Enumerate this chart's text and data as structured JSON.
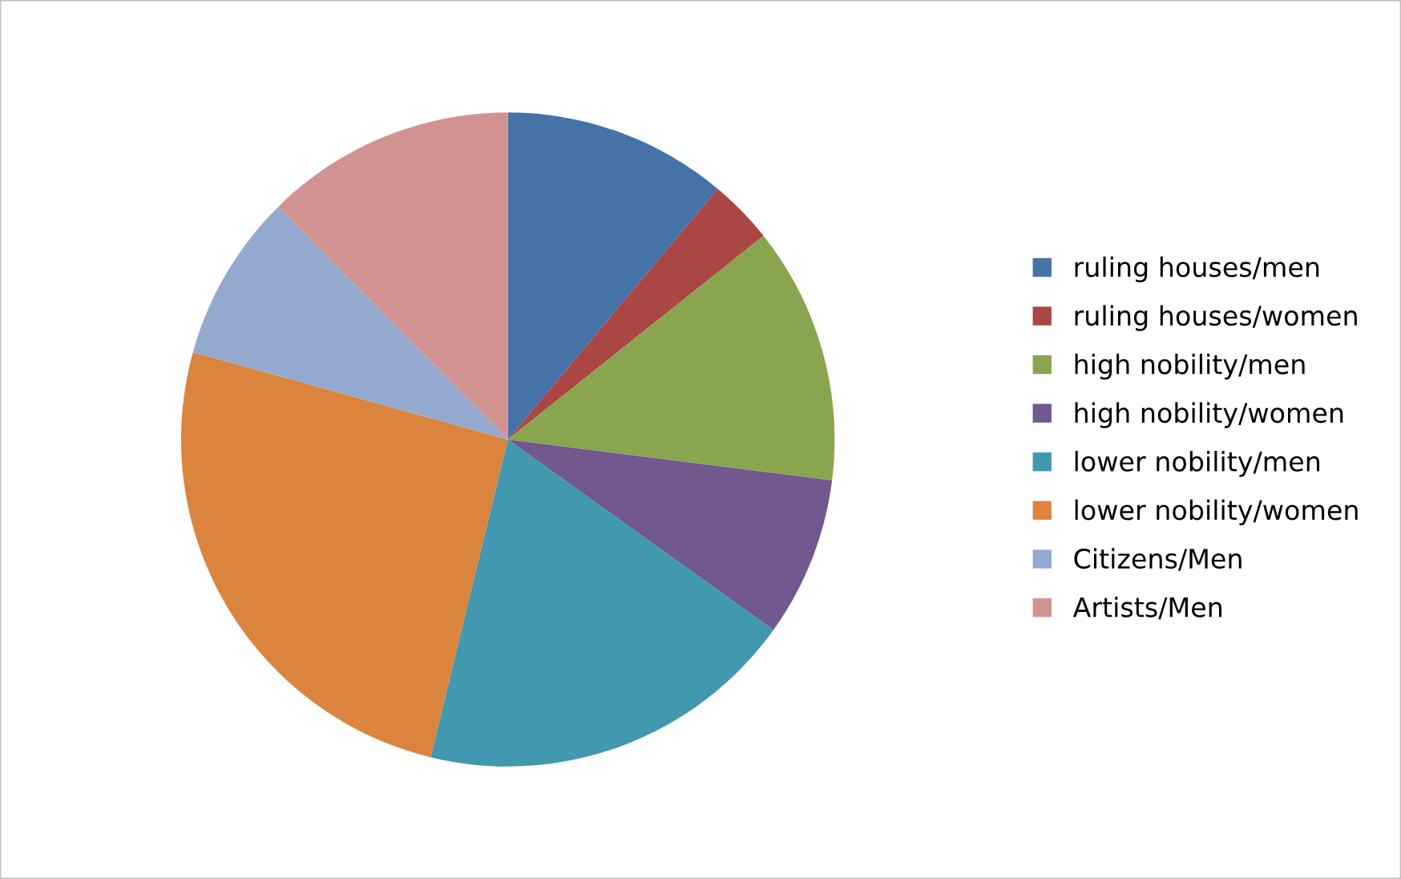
{
  "chart_data": {
    "type": "pie",
    "categories": [
      "ruling houses/men",
      "ruling houses/women",
      "high nobility/men",
      "high nobility/women",
      "lower nobility/men",
      "lower nobility/women",
      "Citizens/Men",
      "Artists/Men"
    ],
    "values": [
      11.1,
      3.2,
      12.7,
      7.9,
      18.9,
      25.5,
      8.3,
      12.4
    ],
    "colors": [
      "#4572a7",
      "#aa4643",
      "#89a54e",
      "#71588f",
      "#4198af",
      "#db843d",
      "#93a9cf",
      "#d19392"
    ],
    "legend": "right"
  }
}
